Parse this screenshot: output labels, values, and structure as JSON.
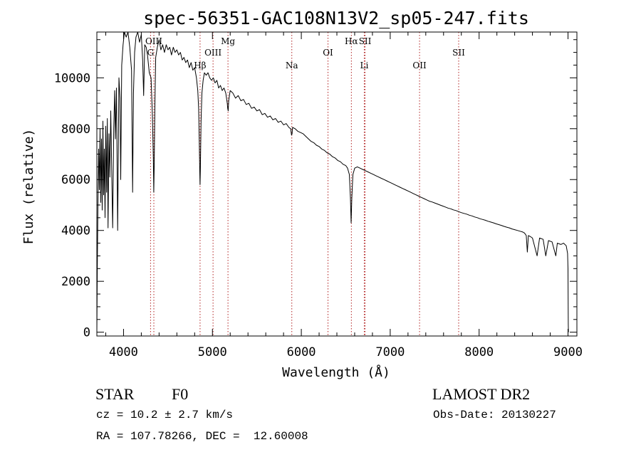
{
  "chart_data": {
    "type": "line",
    "title": "spec-56351-GAC108N13V2_sp05-247.fits",
    "xlabel": "Wavelength (Å)",
    "ylabel": "Flux (relative)",
    "xlim": [
      3700,
      9100
    ],
    "ylim": [
      -150,
      11800
    ],
    "x_ticks": [
      4000,
      5000,
      6000,
      7000,
      8000,
      9000
    ],
    "x_tick_labels": [
      "4000",
      "5000",
      "6000",
      "7000",
      "8000",
      "9000"
    ],
    "y_ticks": [
      0,
      2000,
      4000,
      6000,
      8000,
      10000
    ],
    "y_tick_labels": [
      "0",
      "2000",
      "4000",
      "6000",
      "8000",
      "10000"
    ],
    "grid": false,
    "series": [
      {
        "color": "#000000",
        "points": [
          [
            3700,
            0
          ],
          [
            3705,
            2500
          ],
          [
            3712,
            5000
          ],
          [
            3720,
            7200
          ],
          [
            3728,
            5600
          ],
          [
            3736,
            8000
          ],
          [
            3744,
            5100
          ],
          [
            3752,
            7600
          ],
          [
            3760,
            4800
          ],
          [
            3768,
            8300
          ],
          [
            3776,
            5400
          ],
          [
            3784,
            7200
          ],
          [
            3792,
            4500
          ],
          [
            3800,
            8100
          ],
          [
            3810,
            5500
          ],
          [
            3818,
            8400
          ],
          [
            3826,
            4100
          ],
          [
            3836,
            7800
          ],
          [
            3846,
            6100
          ],
          [
            3856,
            8700
          ],
          [
            3866,
            6600
          ],
          [
            3878,
            4100
          ],
          [
            3890,
            8000
          ],
          [
            3900,
            9500
          ],
          [
            3908,
            7600
          ],
          [
            3920,
            9600
          ],
          [
            3934,
            4000
          ],
          [
            3948,
            10000
          ],
          [
            3960,
            9200
          ],
          [
            3968,
            6000
          ],
          [
            3980,
            10500
          ],
          [
            3995,
            11300
          ],
          [
            4010,
            11900
          ],
          [
            4030,
            11600
          ],
          [
            4050,
            11800
          ],
          [
            4070,
            11200
          ],
          [
            4090,
            10300
          ],
          [
            4102,
            5500
          ],
          [
            4112,
            9400
          ],
          [
            4125,
            11000
          ],
          [
            4140,
            11600
          ],
          [
            4160,
            11900
          ],
          [
            4180,
            11400
          ],
          [
            4200,
            11700
          ],
          [
            4215,
            10700
          ],
          [
            4226,
            9300
          ],
          [
            4238,
            11300
          ],
          [
            4255,
            11200
          ],
          [
            4270,
            10900
          ],
          [
            4290,
            10200
          ],
          [
            4310,
            10000
          ],
          [
            4325,
            8500
          ],
          [
            4335,
            6800
          ],
          [
            4340,
            5500
          ],
          [
            4345,
            6500
          ],
          [
            4352,
            8800
          ],
          [
            4362,
            10800
          ],
          [
            4380,
            11200
          ],
          [
            4400,
            11500
          ],
          [
            4420,
            11100
          ],
          [
            4440,
            11300
          ],
          [
            4460,
            11000
          ],
          [
            4480,
            11300
          ],
          [
            4500,
            11100
          ],
          [
            4520,
            11200
          ],
          [
            4540,
            10900
          ],
          [
            4560,
            11200
          ],
          [
            4580,
            11000
          ],
          [
            4600,
            11100
          ],
          [
            4620,
            10900
          ],
          [
            4640,
            11000
          ],
          [
            4660,
            10700
          ],
          [
            4680,
            10800
          ],
          [
            4700,
            10600
          ],
          [
            4720,
            10700
          ],
          [
            4740,
            10400
          ],
          [
            4760,
            10600
          ],
          [
            4780,
            10300
          ],
          [
            4800,
            10400
          ],
          [
            4820,
            10000
          ],
          [
            4835,
            9500
          ],
          [
            4845,
            8800
          ],
          [
            4852,
            7500
          ],
          [
            4858,
            6300
          ],
          [
            4861,
            5800
          ],
          [
            4865,
            6500
          ],
          [
            4872,
            8300
          ],
          [
            4882,
            9400
          ],
          [
            4895,
            9900
          ],
          [
            4910,
            10200
          ],
          [
            4930,
            10100
          ],
          [
            4950,
            10200
          ],
          [
            4970,
            10000
          ],
          [
            4990,
            9900
          ],
          [
            5010,
            10000
          ],
          [
            5030,
            9800
          ],
          [
            5050,
            9900
          ],
          [
            5070,
            9600
          ],
          [
            5090,
            9700
          ],
          [
            5110,
            9500
          ],
          [
            5130,
            9600
          ],
          [
            5150,
            9400
          ],
          [
            5167,
            9000
          ],
          [
            5172,
            8800
          ],
          [
            5177,
            8700
          ],
          [
            5183,
            9100
          ],
          [
            5200,
            9500
          ],
          [
            5230,
            9400
          ],
          [
            5260,
            9200
          ],
          [
            5290,
            9300
          ],
          [
            5320,
            9100
          ],
          [
            5350,
            9150
          ],
          [
            5380,
            8950
          ],
          [
            5410,
            9000
          ],
          [
            5440,
            8800
          ],
          [
            5470,
            8850
          ],
          [
            5500,
            8700
          ],
          [
            5530,
            8750
          ],
          [
            5560,
            8550
          ],
          [
            5590,
            8600
          ],
          [
            5620,
            8450
          ],
          [
            5650,
            8500
          ],
          [
            5680,
            8350
          ],
          [
            5710,
            8400
          ],
          [
            5740,
            8250
          ],
          [
            5770,
            8300
          ],
          [
            5800,
            8150
          ],
          [
            5830,
            8200
          ],
          [
            5860,
            8050
          ],
          [
            5880,
            8000
          ],
          [
            5890,
            7750
          ],
          [
            5896,
            7800
          ],
          [
            5902,
            8050
          ],
          [
            5930,
            8000
          ],
          [
            5960,
            7900
          ],
          [
            5990,
            7850
          ],
          [
            6020,
            7800
          ],
          [
            6050,
            7700
          ],
          [
            6080,
            7600
          ],
          [
            6110,
            7500
          ],
          [
            6140,
            7450
          ],
          [
            6170,
            7350
          ],
          [
            6200,
            7300
          ],
          [
            6230,
            7200
          ],
          [
            6260,
            7150
          ],
          [
            6290,
            7050
          ],
          [
            6320,
            7000
          ],
          [
            6350,
            6900
          ],
          [
            6380,
            6850
          ],
          [
            6410,
            6750
          ],
          [
            6440,
            6700
          ],
          [
            6470,
            6600
          ],
          [
            6500,
            6550
          ],
          [
            6520,
            6450
          ],
          [
            6540,
            6200
          ],
          [
            6552,
            5300
          ],
          [
            6560,
            4300
          ],
          [
            6568,
            5300
          ],
          [
            6580,
            6200
          ],
          [
            6600,
            6450
          ],
          [
            6630,
            6500
          ],
          [
            6660,
            6450
          ],
          [
            6690,
            6400
          ],
          [
            6720,
            6350
          ],
          [
            6750,
            6300
          ],
          [
            6780,
            6250
          ],
          [
            6810,
            6200
          ],
          [
            6840,
            6150
          ],
          [
            6870,
            6100
          ],
          [
            6900,
            6050
          ],
          [
            6930,
            6000
          ],
          [
            6960,
            5950
          ],
          [
            6990,
            5900
          ],
          [
            7020,
            5850
          ],
          [
            7050,
            5800
          ],
          [
            7080,
            5750
          ],
          [
            7110,
            5700
          ],
          [
            7140,
            5650
          ],
          [
            7170,
            5600
          ],
          [
            7200,
            5550
          ],
          [
            7230,
            5500
          ],
          [
            7260,
            5450
          ],
          [
            7290,
            5400
          ],
          [
            7320,
            5350
          ],
          [
            7350,
            5300
          ],
          [
            7380,
            5250
          ],
          [
            7410,
            5200
          ],
          [
            7440,
            5150
          ],
          [
            7470,
            5120
          ],
          [
            7500,
            5080
          ],
          [
            7530,
            5040
          ],
          [
            7560,
            5000
          ],
          [
            7590,
            4960
          ],
          [
            7620,
            4920
          ],
          [
            7650,
            4880
          ],
          [
            7680,
            4850
          ],
          [
            7710,
            4810
          ],
          [
            7740,
            4780
          ],
          [
            7770,
            4740
          ],
          [
            7800,
            4700
          ],
          [
            7830,
            4670
          ],
          [
            7860,
            4640
          ],
          [
            7890,
            4600
          ],
          [
            7920,
            4570
          ],
          [
            7950,
            4530
          ],
          [
            7980,
            4500
          ],
          [
            8010,
            4460
          ],
          [
            8040,
            4430
          ],
          [
            8070,
            4400
          ],
          [
            8100,
            4360
          ],
          [
            8130,
            4330
          ],
          [
            8160,
            4300
          ],
          [
            8190,
            4260
          ],
          [
            8220,
            4230
          ],
          [
            8250,
            4200
          ],
          [
            8280,
            4160
          ],
          [
            8310,
            4130
          ],
          [
            8340,
            4100
          ],
          [
            8370,
            4060
          ],
          [
            8400,
            4030
          ],
          [
            8430,
            4000
          ],
          [
            8460,
            3970
          ],
          [
            8490,
            3940
          ],
          [
            8510,
            3900
          ],
          [
            8530,
            3800
          ],
          [
            8542,
            3150
          ],
          [
            8554,
            3800
          ],
          [
            8580,
            3750
          ],
          [
            8600,
            3700
          ],
          [
            8652,
            3000
          ],
          [
            8680,
            3700
          ],
          [
            8720,
            3650
          ],
          [
            8750,
            3000
          ],
          [
            8780,
            3600
          ],
          [
            8820,
            3550
          ],
          [
            8863,
            3000
          ],
          [
            8880,
            3500
          ],
          [
            8920,
            3450
          ],
          [
            8950,
            3500
          ],
          [
            8980,
            3400
          ],
          [
            8995,
            3100
          ],
          [
            9000,
            2500
          ],
          [
            9003,
            300
          ],
          [
            9005,
            0
          ]
        ]
      }
    ],
    "lines": [
      {
        "label": "OIII",
        "wavelength": 4341,
        "row": 0
      },
      {
        "label": "G",
        "wavelength": 4304,
        "row": 1
      },
      {
        "label": "Hβ",
        "wavelength": 4861,
        "row": 2
      },
      {
        "label": "OIII",
        "wavelength": 5007,
        "row": 1
      },
      {
        "label": "Mg",
        "wavelength": 5175,
        "row": 0
      },
      {
        "label": "Na",
        "wavelength": 5893,
        "row": 2
      },
      {
        "label": "OI",
        "wavelength": 6300,
        "row": 1
      },
      {
        "label": "Hα",
        "wavelength": 6563,
        "row": 0
      },
      {
        "label": "SII",
        "wavelength": 6717,
        "row": 0
      },
      {
        "label": "Li",
        "wavelength": 6708,
        "row": 2
      },
      {
        "label": "OII",
        "wavelength": 7330,
        "row": 2
      },
      {
        "label": "SII",
        "wavelength": 7770,
        "row": 1
      }
    ]
  },
  "info": {
    "object_class": "STAR",
    "subclass": "F0",
    "survey": "LAMOST DR2",
    "cz": "cz = 10.2 ± 2.7 km/s",
    "obs_date": "Obs-Date: 20130227",
    "coords": "RA = 107.78266, DEC =  12.60008"
  }
}
